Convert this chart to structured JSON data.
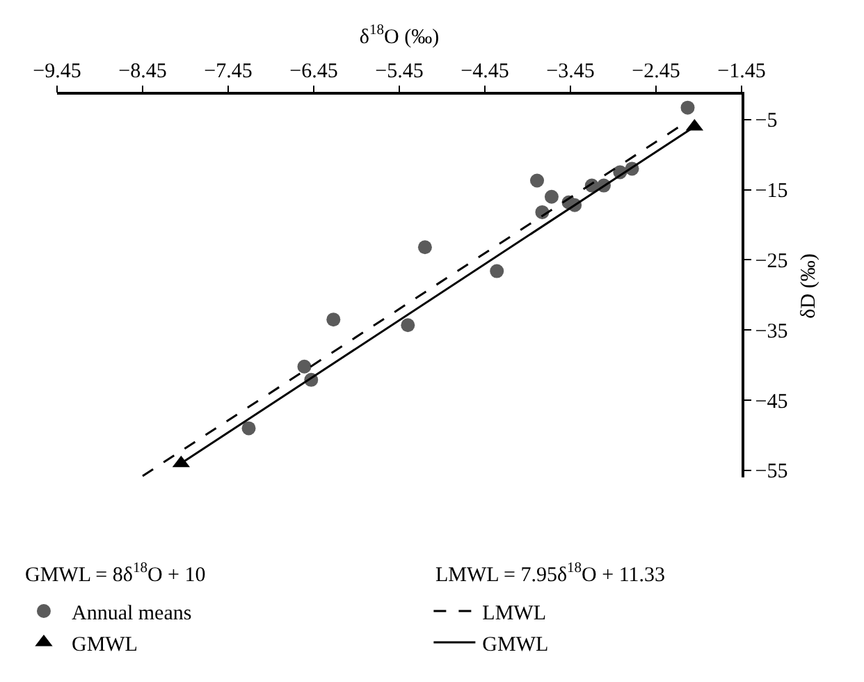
{
  "chart_data": {
    "type": "scatter",
    "xlabel": "δ$^{18}$O (‰)",
    "ylabel": "δD (‰)",
    "xlim": [
      -9.45,
      -1.45
    ],
    "xticks": [
      -9.45,
      -8.45,
      -7.45,
      -6.45,
      -5.45,
      -4.45,
      -3.45,
      -2.45,
      -1.45
    ],
    "ylim": [
      -56,
      -1.45
    ],
    "yticks": [
      -5,
      -15,
      -25,
      -35,
      -45,
      -55
    ],
    "grid": false,
    "legend": "bottom",
    "annotations": [
      "GMWL = 8δ$^{18}$O + 10",
      "LMWL = 7.95δ$^{18}$O + 11.33"
    ],
    "series": [
      {
        "name": "Annual means",
        "type": "scatter",
        "marker": "circle",
        "color": "#5b5b5b",
        "x": [
          -7.21,
          -6.56,
          -6.48,
          -6.22,
          -5.35,
          -5.15,
          -4.31,
          -3.84,
          -3.78,
          -3.67,
          -3.47,
          -3.4,
          -3.2,
          -3.06,
          -2.87,
          -2.73,
          -2.08
        ],
        "values": [
          -49.0,
          -40.2,
          -42.1,
          -33.5,
          -34.3,
          -23.2,
          -26.6,
          -13.7,
          -18.2,
          -16.0,
          -16.8,
          -17.2,
          -14.4,
          -14.4,
          -12.5,
          -12.0,
          -3.3
        ]
      },
      {
        "name": "LMWL",
        "type": "line",
        "marker": "none",
        "line_style": "dashed",
        "color": "#000000",
        "x": [
          -8.45,
          -2.1
        ],
        "values": [
          -55.8,
          -5.4
        ]
      },
      {
        "name": "GMWL",
        "type": "scatter",
        "marker": "triangle",
        "color": "#000000",
        "x": [
          -8.0,
          -2.0
        ],
        "values": [
          -54.0,
          -6.0
        ]
      },
      {
        "name": "GMWL",
        "type": "line",
        "marker": "none",
        "line_style": "solid",
        "color": "#000000",
        "x": [
          -8.0,
          -2.0
        ],
        "values": [
          -54.0,
          -6.0
        ]
      }
    ]
  }
}
